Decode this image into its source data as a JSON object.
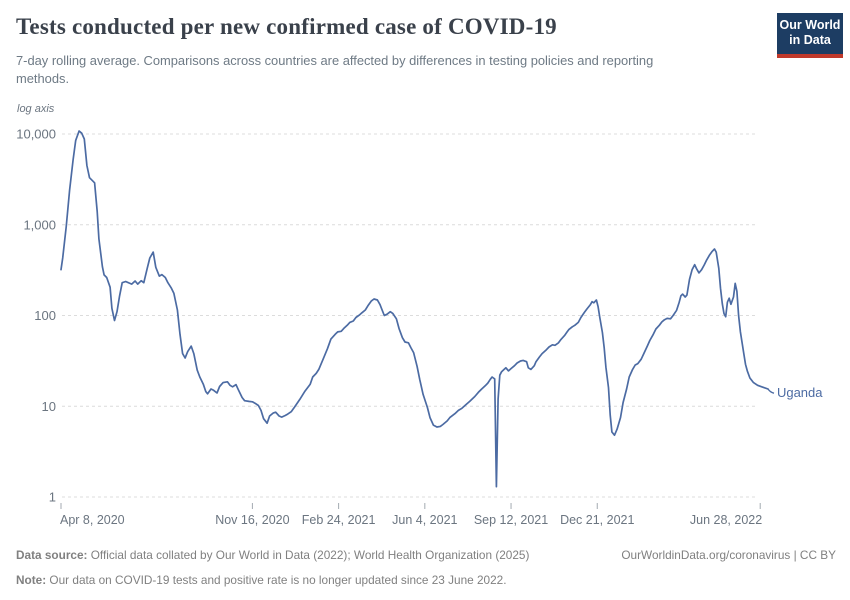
{
  "header": {
    "title": "Tests conducted per new confirmed case of COVID-19",
    "subtitle": "7-day rolling average. Comparisons across countries are affected by differences in testing policies and reporting methods.",
    "logo": {
      "line1": "Our World",
      "line2": "in Data",
      "bg_color": "#1d3d63",
      "accent_color": "#c0392b"
    }
  },
  "footer": {
    "source_label": "Data source:",
    "source_text": " Official data collated by Our World in Data (2022); World Health Organization (2025)",
    "rights": "OurWorldinData.org/coronavirus | CC BY",
    "note_label": "Note:",
    "note_text": " Our data on COVID-19 tests and positive rate is no longer updated since 23 June 2022."
  },
  "chart_data": {
    "type": "line",
    "title": "Tests conducted per new confirmed case of COVID-19",
    "axis_note": "log axis",
    "grid": true,
    "legend_position": "end-of-line-label",
    "y_axis": {
      "scale": "log",
      "ylim": [
        1,
        10000
      ],
      "ticks": [
        {
          "label": "10,000",
          "value": 10000
        },
        {
          "label": "1,000",
          "value": 1000
        },
        {
          "label": "100",
          "value": 100
        },
        {
          "label": "10",
          "value": 10
        },
        {
          "label": "1",
          "value": 1
        }
      ]
    },
    "x_axis": {
      "unit": "days since Apr 8, 2020",
      "xlim_days": [
        0,
        820
      ],
      "ticks": [
        {
          "label": "Apr 8, 2020",
          "day": 0
        },
        {
          "label": "Nov 16, 2020",
          "day": 222
        },
        {
          "label": "Feb 24, 2021",
          "day": 322
        },
        {
          "label": "Jun 4, 2021",
          "day": 422
        },
        {
          "label": "Sep 12, 2021",
          "day": 522
        },
        {
          "label": "Dec 21, 2021",
          "day": 622
        },
        {
          "label": "Jun 28, 2022",
          "day": 811
        }
      ]
    },
    "series": [
      {
        "name": "Uganda",
        "color": "#4c6ba3",
        "points": [
          [
            0,
            320
          ],
          [
            2,
            430
          ],
          [
            6,
            950
          ],
          [
            10,
            2400
          ],
          [
            14,
            5200
          ],
          [
            17,
            8500
          ],
          [
            21,
            10800
          ],
          [
            24,
            10200
          ],
          [
            27,
            8800
          ],
          [
            30,
            4500
          ],
          [
            33,
            3300
          ],
          [
            36,
            3100
          ],
          [
            39,
            2900
          ],
          [
            42,
            1400
          ],
          [
            44,
            700
          ],
          [
            48,
            345
          ],
          [
            50,
            280
          ],
          [
            53,
            262
          ],
          [
            57,
            205
          ],
          [
            59,
            120
          ],
          [
            62,
            88
          ],
          [
            65,
            110
          ],
          [
            68,
            165
          ],
          [
            71,
            230
          ],
          [
            75,
            237
          ],
          [
            79,
            228
          ],
          [
            82,
            222
          ],
          [
            86,
            240
          ],
          [
            89,
            222
          ],
          [
            93,
            242
          ],
          [
            96,
            230
          ],
          [
            100,
            330
          ],
          [
            103,
            430
          ],
          [
            107,
            500
          ],
          [
            110,
            340
          ],
          [
            114,
            272
          ],
          [
            117,
            282
          ],
          [
            121,
            262
          ],
          [
            124,
            230
          ],
          [
            128,
            200
          ],
          [
            131,
            175
          ],
          [
            135,
            115
          ],
          [
            138,
            62
          ],
          [
            141,
            38
          ],
          [
            144,
            34
          ],
          [
            147,
            40
          ],
          [
            151,
            46
          ],
          [
            154,
            38
          ],
          [
            158,
            25
          ],
          [
            161,
            21
          ],
          [
            165,
            17.5
          ],
          [
            168,
            14.5
          ],
          [
            170,
            13.7
          ],
          [
            174,
            15.5
          ],
          [
            177,
            15
          ],
          [
            181,
            14
          ],
          [
            184,
            16.5
          ],
          [
            188,
            18.2
          ],
          [
            193,
            18.6
          ],
          [
            196,
            17
          ],
          [
            199,
            16.4
          ],
          [
            203,
            17.3
          ],
          [
            206,
            15
          ],
          [
            210,
            12.5
          ],
          [
            213,
            11.5
          ],
          [
            218,
            11.3
          ],
          [
            222,
            11.2
          ],
          [
            225,
            10.8
          ],
          [
            229,
            10.2
          ],
          [
            232,
            9
          ],
          [
            235,
            7.3
          ],
          [
            239,
            6.5
          ],
          [
            242,
            7.8
          ],
          [
            246,
            8.4
          ],
          [
            249,
            8.6
          ],
          [
            253,
            7.8
          ],
          [
            256,
            7.6
          ],
          [
            260,
            7.9
          ],
          [
            263,
            8.2
          ],
          [
            267,
            8.7
          ],
          [
            271,
            9.8
          ],
          [
            277,
            11.9
          ],
          [
            283,
            14.7
          ],
          [
            289,
            17.5
          ],
          [
            292,
            21
          ],
          [
            296,
            23
          ],
          [
            299,
            25.5
          ],
          [
            304,
            33
          ],
          [
            309,
            43
          ],
          [
            313,
            55
          ],
          [
            318,
            62
          ],
          [
            321,
            66
          ],
          [
            325,
            67
          ],
          [
            328,
            72
          ],
          [
            332,
            78
          ],
          [
            335,
            84
          ],
          [
            339,
            87
          ],
          [
            342,
            95
          ],
          [
            346,
            101
          ],
          [
            349,
            107
          ],
          [
            353,
            115
          ],
          [
            356,
            128
          ],
          [
            360,
            145
          ],
          [
            363,
            152
          ],
          [
            367,
            148
          ],
          [
            370,
            132
          ],
          [
            375,
            100
          ],
          [
            378,
            103
          ],
          [
            382,
            110
          ],
          [
            385,
            105
          ],
          [
            389,
            92
          ],
          [
            392,
            72
          ],
          [
            396,
            57
          ],
          [
            399,
            51
          ],
          [
            403,
            50
          ],
          [
            406,
            44
          ],
          [
            409,
            39
          ],
          [
            413,
            27.5
          ],
          [
            416,
            19.8
          ],
          [
            420,
            13.5
          ],
          [
            425,
            9.7
          ],
          [
            428,
            7.5
          ],
          [
            432,
            6.2
          ],
          [
            436,
            5.9
          ],
          [
            440,
            6
          ],
          [
            443,
            6.3
          ],
          [
            448,
            6.9
          ],
          [
            451,
            7.5
          ],
          [
            457,
            8.3
          ],
          [
            461,
            9
          ],
          [
            465,
            9.5
          ],
          [
            471,
            10.7
          ],
          [
            474,
            11.3
          ],
          [
            480,
            12.8
          ],
          [
            484,
            14.2
          ],
          [
            488,
            15.5
          ],
          [
            492,
            16.8
          ],
          [
            495,
            18
          ],
          [
            498,
            19.8
          ],
          [
            500,
            21
          ],
          [
            503,
            20
          ],
          [
            505,
            1.3
          ],
          [
            507,
            12
          ],
          [
            509,
            22
          ],
          [
            511,
            24
          ],
          [
            514,
            25.5
          ],
          [
            516,
            26.5
          ],
          [
            519,
            24.5
          ],
          [
            522,
            26
          ],
          [
            526,
            28
          ],
          [
            529,
            30
          ],
          [
            533,
            31.5
          ],
          [
            536,
            32
          ],
          [
            540,
            31
          ],
          [
            542,
            26.5
          ],
          [
            545,
            25.5
          ],
          [
            549,
            28
          ],
          [
            551,
            31
          ],
          [
            555,
            35
          ],
          [
            558,
            38
          ],
          [
            563,
            42
          ],
          [
            566,
            45
          ],
          [
            570,
            47.5
          ],
          [
            573,
            47
          ],
          [
            577,
            50
          ],
          [
            580,
            54.5
          ],
          [
            584,
            60
          ],
          [
            587,
            66
          ],
          [
            589,
            70
          ],
          [
            593,
            75
          ],
          [
            596,
            78
          ],
          [
            600,
            84
          ],
          [
            603,
            95
          ],
          [
            607,
            108
          ],
          [
            610,
            118
          ],
          [
            614,
            132
          ],
          [
            616,
            142
          ],
          [
            618,
            138
          ],
          [
            621,
            148
          ],
          [
            623,
            125
          ],
          [
            625,
            95
          ],
          [
            628,
            65
          ],
          [
            630,
            44
          ],
          [
            632,
            27
          ],
          [
            635,
            16
          ],
          [
            637,
            8
          ],
          [
            639,
            5.2
          ],
          [
            642,
            4.8
          ],
          [
            645,
            5.6
          ],
          [
            649,
            7.5
          ],
          [
            652,
            11
          ],
          [
            656,
            15.5
          ],
          [
            659,
            21
          ],
          [
            663,
            25.5
          ],
          [
            666,
            28.5
          ],
          [
            669,
            29.5
          ],
          [
            673,
            33
          ],
          [
            676,
            38
          ],
          [
            680,
            46
          ],
          [
            683,
            53
          ],
          [
            687,
            62
          ],
          [
            690,
            71
          ],
          [
            694,
            78
          ],
          [
            697,
            85
          ],
          [
            700,
            90
          ],
          [
            703,
            93
          ],
          [
            707,
            92
          ],
          [
            710,
            100
          ],
          [
            714,
            114
          ],
          [
            717,
            140
          ],
          [
            719,
            165
          ],
          [
            721,
            172
          ],
          [
            724,
            160
          ],
          [
            726,
            168
          ],
          [
            729,
            250
          ],
          [
            732,
            320
          ],
          [
            735,
            363
          ],
          [
            737,
            330
          ],
          [
            740,
            295
          ],
          [
            743,
            320
          ],
          [
            746,
            360
          ],
          [
            749,
            410
          ],
          [
            752,
            460
          ],
          [
            755,
            505
          ],
          [
            758,
            540
          ],
          [
            760,
            500
          ],
          [
            763,
            330
          ],
          [
            765,
            200
          ],
          [
            767,
            135
          ],
          [
            769,
            105
          ],
          [
            771,
            97
          ],
          [
            773,
            140
          ],
          [
            775,
            155
          ],
          [
            777,
            133
          ],
          [
            780,
            160
          ],
          [
            782,
            226
          ],
          [
            784,
            185
          ],
          [
            786,
            100
          ],
          [
            788,
            66
          ],
          [
            790,
            50
          ],
          [
            792,
            38
          ],
          [
            794,
            29
          ],
          [
            796,
            24.5
          ],
          [
            799,
            20.5
          ],
          [
            803,
            18.3
          ],
          [
            808,
            17
          ],
          [
            814,
            16.2
          ],
          [
            820,
            15.5
          ]
        ]
      }
    ],
    "colors": {
      "gridline": "#dcdcdc",
      "axis_text": "#6b7580",
      "tick_mark": "#a3aab1"
    }
  }
}
